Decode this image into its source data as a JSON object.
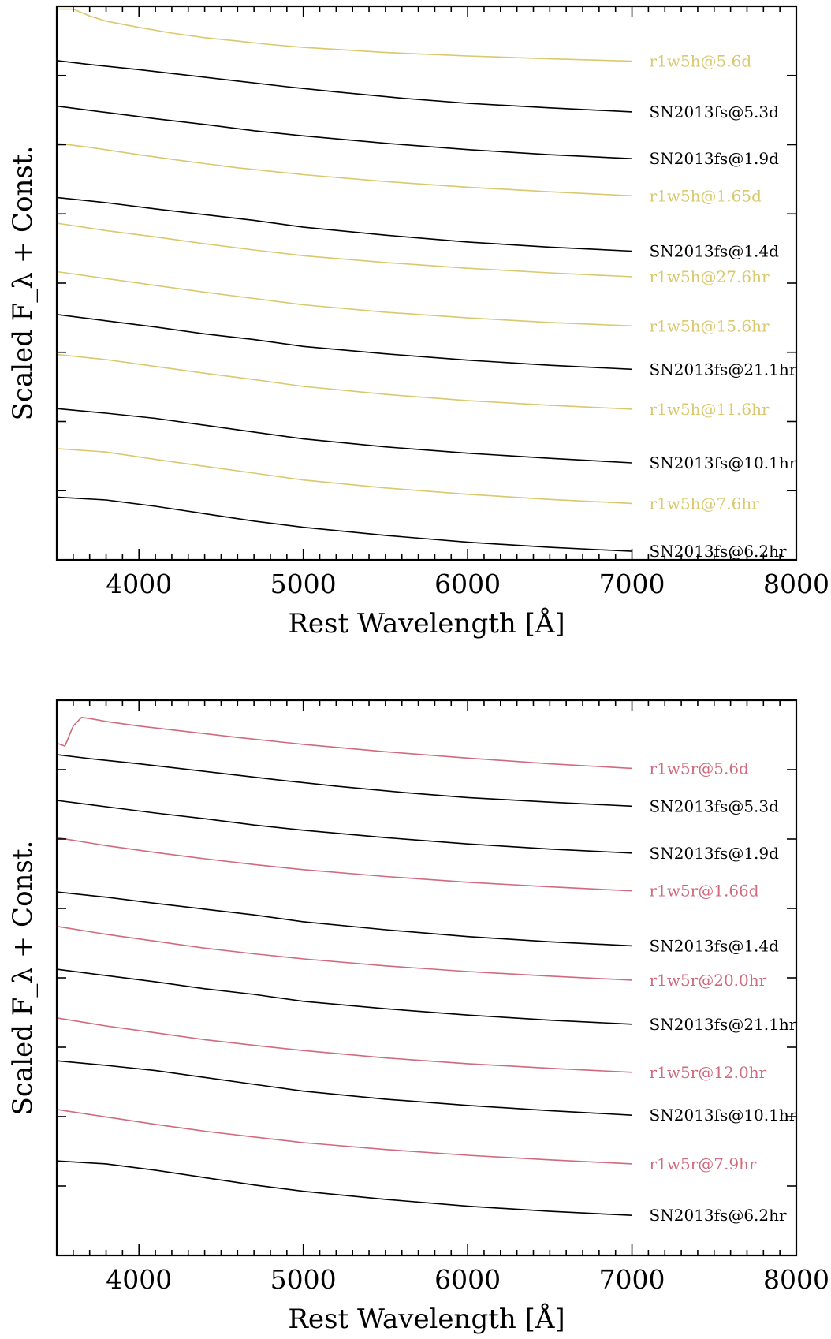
{
  "chart_data": [
    {
      "type": "line",
      "xlabel": "Rest Wavelength [Å]",
      "ylabel": "Scaled F_λ + Const.",
      "xlim": [
        3500,
        8000
      ],
      "xticks": [
        4000,
        5000,
        6000,
        7000,
        8000
      ],
      "grid": false,
      "legend": "labels at right end of each spectrum",
      "colors": {
        "model": "#d9c86e",
        "observed": "#000000"
      },
      "series": [
        {
          "name": "r1w5h@5.6d",
          "kind": "model",
          "offset": 11.55,
          "x": [
            3500,
            3600,
            3700,
            3800,
            4000,
            4200,
            4400,
            4600,
            4800,
            5000,
            5500,
            6000,
            6500,
            7000
          ],
          "y": [
            1.0,
            1.0,
            0.88,
            0.79,
            0.68,
            0.58,
            0.5,
            0.44,
            0.38,
            0.33,
            0.24,
            0.18,
            0.13,
            0.09
          ]
        },
        {
          "name": "SN2013fs@5.3d",
          "kind": "observed",
          "offset": 10.65,
          "x": [
            3500,
            3700,
            4000,
            4300,
            4600,
            4900,
            5200,
            5600,
            6000,
            6500,
            7000
          ],
          "y": [
            1.0,
            0.93,
            0.84,
            0.74,
            0.64,
            0.54,
            0.45,
            0.34,
            0.25,
            0.17,
            0.1
          ]
        },
        {
          "name": "SN2013fs@1.9d",
          "kind": "observed",
          "offset": 9.85,
          "x": [
            3500,
            3800,
            4100,
            4400,
            4700,
            5000,
            5500,
            6000,
            6500,
            7000
          ],
          "y": [
            1.0,
            0.89,
            0.78,
            0.68,
            0.57,
            0.48,
            0.35,
            0.24,
            0.15,
            0.08
          ]
        },
        {
          "name": "r1w5h@1.65d",
          "kind": "model",
          "offset": 9.2,
          "x": [
            3500,
            3700,
            4000,
            4300,
            4600,
            5000,
            5500,
            6000,
            6500,
            7000
          ],
          "y": [
            1.0,
            0.93,
            0.8,
            0.68,
            0.57,
            0.45,
            0.33,
            0.23,
            0.15,
            0.08
          ]
        },
        {
          "name": "SN2013fs@1.4d",
          "kind": "observed",
          "offset": 8.25,
          "x": [
            3500,
            3800,
            4100,
            4400,
            4700,
            5000,
            5500,
            6000,
            6500,
            7000
          ],
          "y": [
            1.0,
            0.91,
            0.8,
            0.7,
            0.6,
            0.48,
            0.34,
            0.22,
            0.13,
            0.06
          ]
        },
        {
          "name": "r1w5h@27.6hr",
          "kind": "model",
          "offset": 7.8,
          "x": [
            3500,
            3800,
            4100,
            4400,
            4700,
            5000,
            5500,
            6000,
            6500,
            7000
          ],
          "y": [
            1.0,
            0.87,
            0.76,
            0.64,
            0.53,
            0.43,
            0.31,
            0.21,
            0.13,
            0.06
          ]
        },
        {
          "name": "r1w5h@15.6hr",
          "kind": "model",
          "offset": 6.95,
          "x": [
            3500,
            3800,
            4100,
            4400,
            4700,
            5000,
            5500,
            6000,
            6500,
            7000
          ],
          "y": [
            1.0,
            0.88,
            0.76,
            0.64,
            0.53,
            0.42,
            0.29,
            0.19,
            0.11,
            0.05
          ]
        },
        {
          "name": "SN2013fs@21.1hr",
          "kind": "observed",
          "offset": 6.2,
          "x": [
            3500,
            3800,
            4100,
            4400,
            4700,
            5000,
            5500,
            6000,
            6500,
            7000
          ],
          "y": [
            1.0,
            0.89,
            0.78,
            0.66,
            0.56,
            0.44,
            0.31,
            0.2,
            0.11,
            0.04
          ]
        },
        {
          "name": "r1w5h@11.6hr",
          "kind": "model",
          "offset": 5.5,
          "x": [
            3500,
            3800,
            4100,
            4400,
            4700,
            5000,
            5500,
            6000,
            6500,
            7000
          ],
          "y": [
            1.0,
            0.91,
            0.79,
            0.67,
            0.56,
            0.44,
            0.3,
            0.19,
            0.11,
            0.04
          ]
        },
        {
          "name": "SN2013fs@10.1hr",
          "kind": "observed",
          "offset": 4.55,
          "x": [
            3500,
            3800,
            4100,
            4400,
            4700,
            5000,
            5500,
            6000,
            6500,
            7000
          ],
          "y": [
            1.0,
            0.92,
            0.83,
            0.71,
            0.59,
            0.47,
            0.33,
            0.22,
            0.13,
            0.05
          ]
        },
        {
          "name": "r1w5h@7.6hr",
          "kind": "model",
          "offset": 3.85,
          "x": [
            3500,
            3800,
            4100,
            4400,
            4700,
            5000,
            5500,
            6000,
            6500,
            7000
          ],
          "y": [
            1.0,
            0.94,
            0.81,
            0.69,
            0.57,
            0.45,
            0.31,
            0.2,
            0.11,
            0.04
          ]
        },
        {
          "name": "SN2013fs@6.2hr",
          "kind": "observed",
          "offset": 3.0,
          "x": [
            3500,
            3800,
            4100,
            4400,
            4700,
            5000,
            5500,
            6000,
            6500,
            7000
          ],
          "y": [
            1.0,
            0.95,
            0.84,
            0.71,
            0.58,
            0.47,
            0.33,
            0.21,
            0.12,
            0.05
          ]
        }
      ]
    },
    {
      "type": "line",
      "xlabel": "Rest Wavelength [Å]",
      "ylabel": "Scaled F_λ + Const.",
      "xlim": [
        3500,
        8000
      ],
      "xticks": [
        4000,
        5000,
        6000,
        7000,
        8000
      ],
      "grid": false,
      "legend": "labels at right end of each spectrum",
      "colors": {
        "model": "#d06a7e",
        "observed": "#000000"
      },
      "series": [
        {
          "name": "r1w5r@5.6d",
          "kind": "model",
          "offset": 11.3,
          "x": [
            3500,
            3550,
            3600,
            3650,
            3700,
            3800,
            4000,
            4300,
            4600,
            5000,
            5500,
            6000,
            6500,
            7000
          ],
          "y": [
            0.55,
            0.5,
            0.85,
            1.0,
            0.98,
            0.93,
            0.85,
            0.75,
            0.65,
            0.53,
            0.4,
            0.29,
            0.19,
            0.11
          ]
        },
        {
          "name": "SN2013fs@5.3d",
          "kind": "observed",
          "offset": 10.65,
          "x": [
            3500,
            3700,
            4000,
            4300,
            4600,
            4900,
            5200,
            5600,
            6000,
            6500,
            7000
          ],
          "y": [
            1.0,
            0.93,
            0.84,
            0.74,
            0.64,
            0.54,
            0.45,
            0.34,
            0.25,
            0.17,
            0.1
          ]
        },
        {
          "name": "SN2013fs@1.9d",
          "kind": "observed",
          "offset": 9.85,
          "x": [
            3500,
            3800,
            4100,
            4400,
            4700,
            5000,
            5500,
            6000,
            6500,
            7000
          ],
          "y": [
            1.0,
            0.89,
            0.78,
            0.68,
            0.57,
            0.48,
            0.35,
            0.24,
            0.15,
            0.08
          ]
        },
        {
          "name": "r1w5r@1.66d",
          "kind": "model",
          "offset": 9.2,
          "x": [
            3500,
            3800,
            4100,
            4400,
            4700,
            5000,
            5500,
            6000,
            6500,
            7000
          ],
          "y": [
            1.0,
            0.86,
            0.74,
            0.63,
            0.53,
            0.44,
            0.32,
            0.22,
            0.14,
            0.07
          ]
        },
        {
          "name": "SN2013fs@1.4d",
          "kind": "observed",
          "offset": 8.25,
          "x": [
            3500,
            3800,
            4100,
            4400,
            4700,
            5000,
            5500,
            6000,
            6500,
            7000
          ],
          "y": [
            1.0,
            0.91,
            0.8,
            0.7,
            0.6,
            0.48,
            0.34,
            0.22,
            0.13,
            0.06
          ]
        },
        {
          "name": "r1w5r@20.0hr",
          "kind": "model",
          "offset": 7.65,
          "x": [
            3500,
            3800,
            4100,
            4400,
            4700,
            5000,
            5500,
            6000,
            6500,
            7000
          ],
          "y": [
            1.0,
            0.86,
            0.74,
            0.62,
            0.52,
            0.43,
            0.31,
            0.21,
            0.13,
            0.06
          ]
        },
        {
          "name": "SN2013fs@21.1hr",
          "kind": "observed",
          "offset": 6.9,
          "x": [
            3500,
            3800,
            4100,
            4400,
            4700,
            5000,
            5500,
            6000,
            6500,
            7000
          ],
          "y": [
            1.0,
            0.89,
            0.78,
            0.66,
            0.56,
            0.44,
            0.31,
            0.2,
            0.11,
            0.04
          ]
        },
        {
          "name": "r1w5r@12.0hr",
          "kind": "model",
          "offset": 6.05,
          "x": [
            3500,
            3800,
            4100,
            4400,
            4700,
            5000,
            5500,
            6000,
            6500,
            7000
          ],
          "y": [
            1.0,
            0.86,
            0.74,
            0.62,
            0.52,
            0.43,
            0.3,
            0.2,
            0.12,
            0.05
          ]
        },
        {
          "name": "SN2013fs@10.1hr",
          "kind": "observed",
          "offset": 5.3,
          "x": [
            3500,
            3800,
            4100,
            4400,
            4700,
            5000,
            5500,
            6000,
            6500,
            7000
          ],
          "y": [
            1.0,
            0.92,
            0.83,
            0.71,
            0.59,
            0.47,
            0.33,
            0.22,
            0.13,
            0.05
          ]
        },
        {
          "name": "r1w5r@7.9hr",
          "kind": "model",
          "offset": 4.45,
          "x": [
            3500,
            3800,
            4100,
            4400,
            4700,
            5000,
            5500,
            6000,
            6500,
            7000
          ],
          "y": [
            1.0,
            0.87,
            0.74,
            0.62,
            0.52,
            0.42,
            0.3,
            0.2,
            0.12,
            0.05
          ]
        },
        {
          "name": "SN2013fs@6.2hr",
          "kind": "observed",
          "offset": 3.55,
          "x": [
            3500,
            3800,
            4100,
            4400,
            4700,
            5000,
            5500,
            6000,
            6500,
            7000
          ],
          "y": [
            1.0,
            0.95,
            0.84,
            0.71,
            0.58,
            0.47,
            0.33,
            0.21,
            0.12,
            0.05
          ]
        }
      ]
    }
  ]
}
